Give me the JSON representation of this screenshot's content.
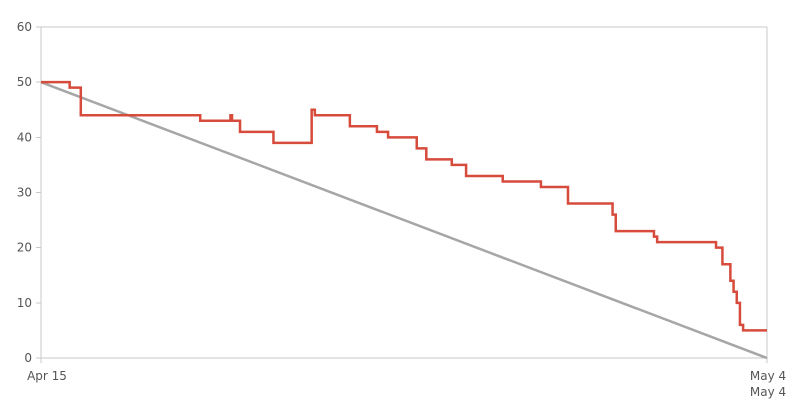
{
  "chart_data": {
    "type": "line",
    "title": "",
    "xlabel": "",
    "ylabel": "",
    "ylim": [
      0,
      60
    ],
    "yticks": [
      "0",
      "10",
      "20",
      "30",
      "40",
      "50",
      "60"
    ],
    "xticks": [
      {
        "x": "2024-04-15",
        "lines": [
          "Apr 15"
        ]
      },
      {
        "x": "2024-05-04",
        "lines": [
          "May 4",
          "May 4"
        ]
      }
    ],
    "xlim": [
      "2024-04-15",
      "2024-05-04"
    ],
    "grid": false,
    "colors": {
      "remaining": "#d64b3b",
      "ideal": "#a6a6a6",
      "axis": "#c8c8c8",
      "tick_text": "#555555"
    },
    "series": [
      {
        "key": "ideal",
        "step": false,
        "points": [
          {
            "x": "2024-04-15 00:00",
            "y": 50
          },
          {
            "x": "2024-05-04 00:00",
            "y": 0
          }
        ]
      },
      {
        "key": "remaining",
        "step": true,
        "points": [
          {
            "x": "2024-04-15 00:00",
            "y": 50
          },
          {
            "x": "2024-04-15 18:00",
            "y": 49
          },
          {
            "x": "2024-04-16 01:00",
            "y": 44
          },
          {
            "x": "2024-04-19 04:00",
            "y": 43
          },
          {
            "x": "2024-04-19 23:00",
            "y": 44
          },
          {
            "x": "2024-04-20 00:00",
            "y": 43
          },
          {
            "x": "2024-04-20 05:00",
            "y": 41
          },
          {
            "x": "2024-04-21 02:00",
            "y": 39
          },
          {
            "x": "2024-04-22 02:00",
            "y": 45
          },
          {
            "x": "2024-04-22 04:00",
            "y": 44
          },
          {
            "x": "2024-04-23 02:00",
            "y": 42
          },
          {
            "x": "2024-04-23 19:00",
            "y": 41
          },
          {
            "x": "2024-04-24 02:00",
            "y": 40
          },
          {
            "x": "2024-04-24 20:00",
            "y": 38
          },
          {
            "x": "2024-04-25 02:00",
            "y": 36
          },
          {
            "x": "2024-04-25 18:00",
            "y": 35
          },
          {
            "x": "2024-04-26 03:00",
            "y": 33
          },
          {
            "x": "2024-04-27 02:00",
            "y": 32
          },
          {
            "x": "2024-04-28 02:00",
            "y": 31
          },
          {
            "x": "2024-04-28 19:00",
            "y": 28
          },
          {
            "x": "2024-04-29 23:00",
            "y": 26
          },
          {
            "x": "2024-04-30 01:00",
            "y": 23
          },
          {
            "x": "2024-05-01 01:00",
            "y": 22
          },
          {
            "x": "2024-05-01 03:00",
            "y": 21
          },
          {
            "x": "2024-05-02 16:00",
            "y": 20
          },
          {
            "x": "2024-05-02 20:00",
            "y": 17
          },
          {
            "x": "2024-05-03 01:00",
            "y": 14
          },
          {
            "x": "2024-05-03 03:00",
            "y": 12
          },
          {
            "x": "2024-05-03 05:00",
            "y": 10
          },
          {
            "x": "2024-05-03 07:00",
            "y": 6
          },
          {
            "x": "2024-05-03 09:00",
            "y": 5
          },
          {
            "x": "2024-05-04 00:00",
            "y": 5
          }
        ]
      }
    ]
  }
}
